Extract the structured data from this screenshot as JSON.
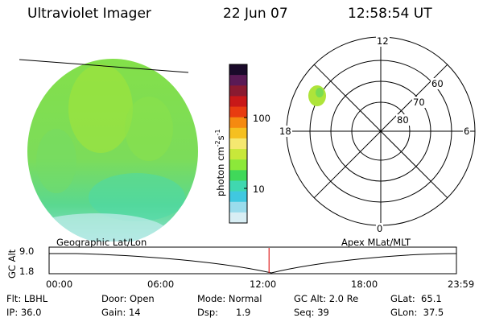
{
  "header": {
    "title": "Ultraviolet Imager",
    "date": "22 Jun 07",
    "time": "12:58:54 UT"
  },
  "colorbar": {
    "unit_label": "photon cm",
    "unit_sup1": "-2",
    "unit_mid": "s",
    "unit_sup2": "-1",
    "ticks": [
      "100",
      "10"
    ],
    "colors": [
      "#1a0a2a",
      "#5a1a55",
      "#8a1a30",
      "#c81818",
      "#e83c10",
      "#f58a10",
      "#f5c020",
      "#f5e870",
      "#c8e83a",
      "#8ce83a",
      "#40d85a",
      "#40d8b0",
      "#40c8e0",
      "#9adcec",
      "#d8eef4"
    ]
  },
  "polar_plot": {
    "labels": {
      "top": "12",
      "left": "18",
      "right": "6",
      "bottom": "0"
    },
    "ring_labels": [
      "60",
      "70",
      "80"
    ]
  },
  "timeline": {
    "left_title": "Geographic Lat/Lon",
    "right_title": "Apex  MLat/MLT",
    "y_label": "GC Alt",
    "y_ticks": [
      "9.0",
      "1.8"
    ],
    "x_ticks": [
      "00:00",
      "06:00",
      "12:00",
      "18:00",
      "23:59"
    ],
    "current_fraction": 0.54
  },
  "info": {
    "filter": "Flt: LBHL",
    "ip": "IP: 36.0",
    "door": "Door: Open",
    "gain": "Gain: 14",
    "mode": "Mode: Normal",
    "dsp_label": "Dsp:",
    "dsp_value": "1.9",
    "gc_alt": "GC Alt: 2.0 Re",
    "seq": "Seq: 39",
    "glat": "GLat:  65.1",
    "glon": "GLon:  37.5"
  },
  "colors": {
    "image_main": "#7ee05a",
    "image_light": "#9fe63a",
    "image_low": "#4cd8b4",
    "auroral_blob": "#a8e63c",
    "marker": "#e02020"
  }
}
